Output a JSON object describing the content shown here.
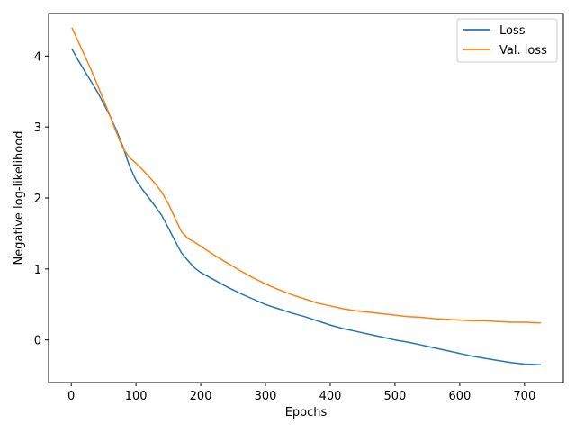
{
  "chart_data": {
    "type": "line",
    "xlabel": "Epochs",
    "ylabel": "Negative log-likelihood",
    "xlim": [
      -35,
      760
    ],
    "ylim": [
      -0.6,
      4.6
    ],
    "xticks": [
      0,
      100,
      200,
      300,
      400,
      500,
      600,
      700
    ],
    "yticks": [
      0,
      1,
      2,
      3,
      4
    ],
    "grid": false,
    "legend_position": "top-right",
    "series": [
      {
        "name": "Loss",
        "color": "#1f77b4",
        "x": [
          1,
          10,
          20,
          30,
          40,
          50,
          60,
          70,
          80,
          90,
          100,
          110,
          120,
          130,
          140,
          150,
          160,
          170,
          180,
          190,
          200,
          220,
          240,
          260,
          280,
          300,
          320,
          340,
          360,
          380,
          400,
          420,
          440,
          460,
          480,
          500,
          520,
          540,
          560,
          580,
          600,
          620,
          640,
          660,
          680,
          700,
          725
        ],
        "y": [
          4.1,
          3.95,
          3.8,
          3.65,
          3.5,
          3.33,
          3.15,
          2.95,
          2.72,
          2.45,
          2.25,
          2.12,
          2.0,
          1.88,
          1.75,
          1.58,
          1.4,
          1.23,
          1.12,
          1.02,
          0.95,
          0.85,
          0.75,
          0.66,
          0.58,
          0.5,
          0.44,
          0.38,
          0.33,
          0.27,
          0.21,
          0.16,
          0.12,
          0.08,
          0.04,
          0.0,
          -0.03,
          -0.07,
          -0.11,
          -0.15,
          -0.19,
          -0.23,
          -0.26,
          -0.29,
          -0.32,
          -0.34,
          -0.35
        ]
      },
      {
        "name": "Val. loss",
        "color": "#ff7f0e",
        "x": [
          1,
          10,
          20,
          30,
          40,
          50,
          60,
          70,
          80,
          90,
          100,
          110,
          120,
          130,
          140,
          150,
          160,
          170,
          180,
          190,
          200,
          220,
          240,
          260,
          280,
          300,
          320,
          340,
          360,
          380,
          400,
          420,
          440,
          460,
          480,
          500,
          520,
          540,
          560,
          580,
          600,
          620,
          640,
          660,
          680,
          700,
          725
        ],
        "y": [
          4.4,
          4.22,
          4.02,
          3.82,
          3.6,
          3.38,
          3.15,
          2.92,
          2.7,
          2.57,
          2.49,
          2.4,
          2.3,
          2.2,
          2.08,
          1.92,
          1.72,
          1.53,
          1.43,
          1.38,
          1.32,
          1.2,
          1.09,
          0.98,
          0.88,
          0.79,
          0.71,
          0.64,
          0.58,
          0.52,
          0.48,
          0.44,
          0.41,
          0.39,
          0.37,
          0.35,
          0.33,
          0.32,
          0.3,
          0.29,
          0.28,
          0.27,
          0.27,
          0.26,
          0.25,
          0.25,
          0.24
        ]
      }
    ]
  }
}
